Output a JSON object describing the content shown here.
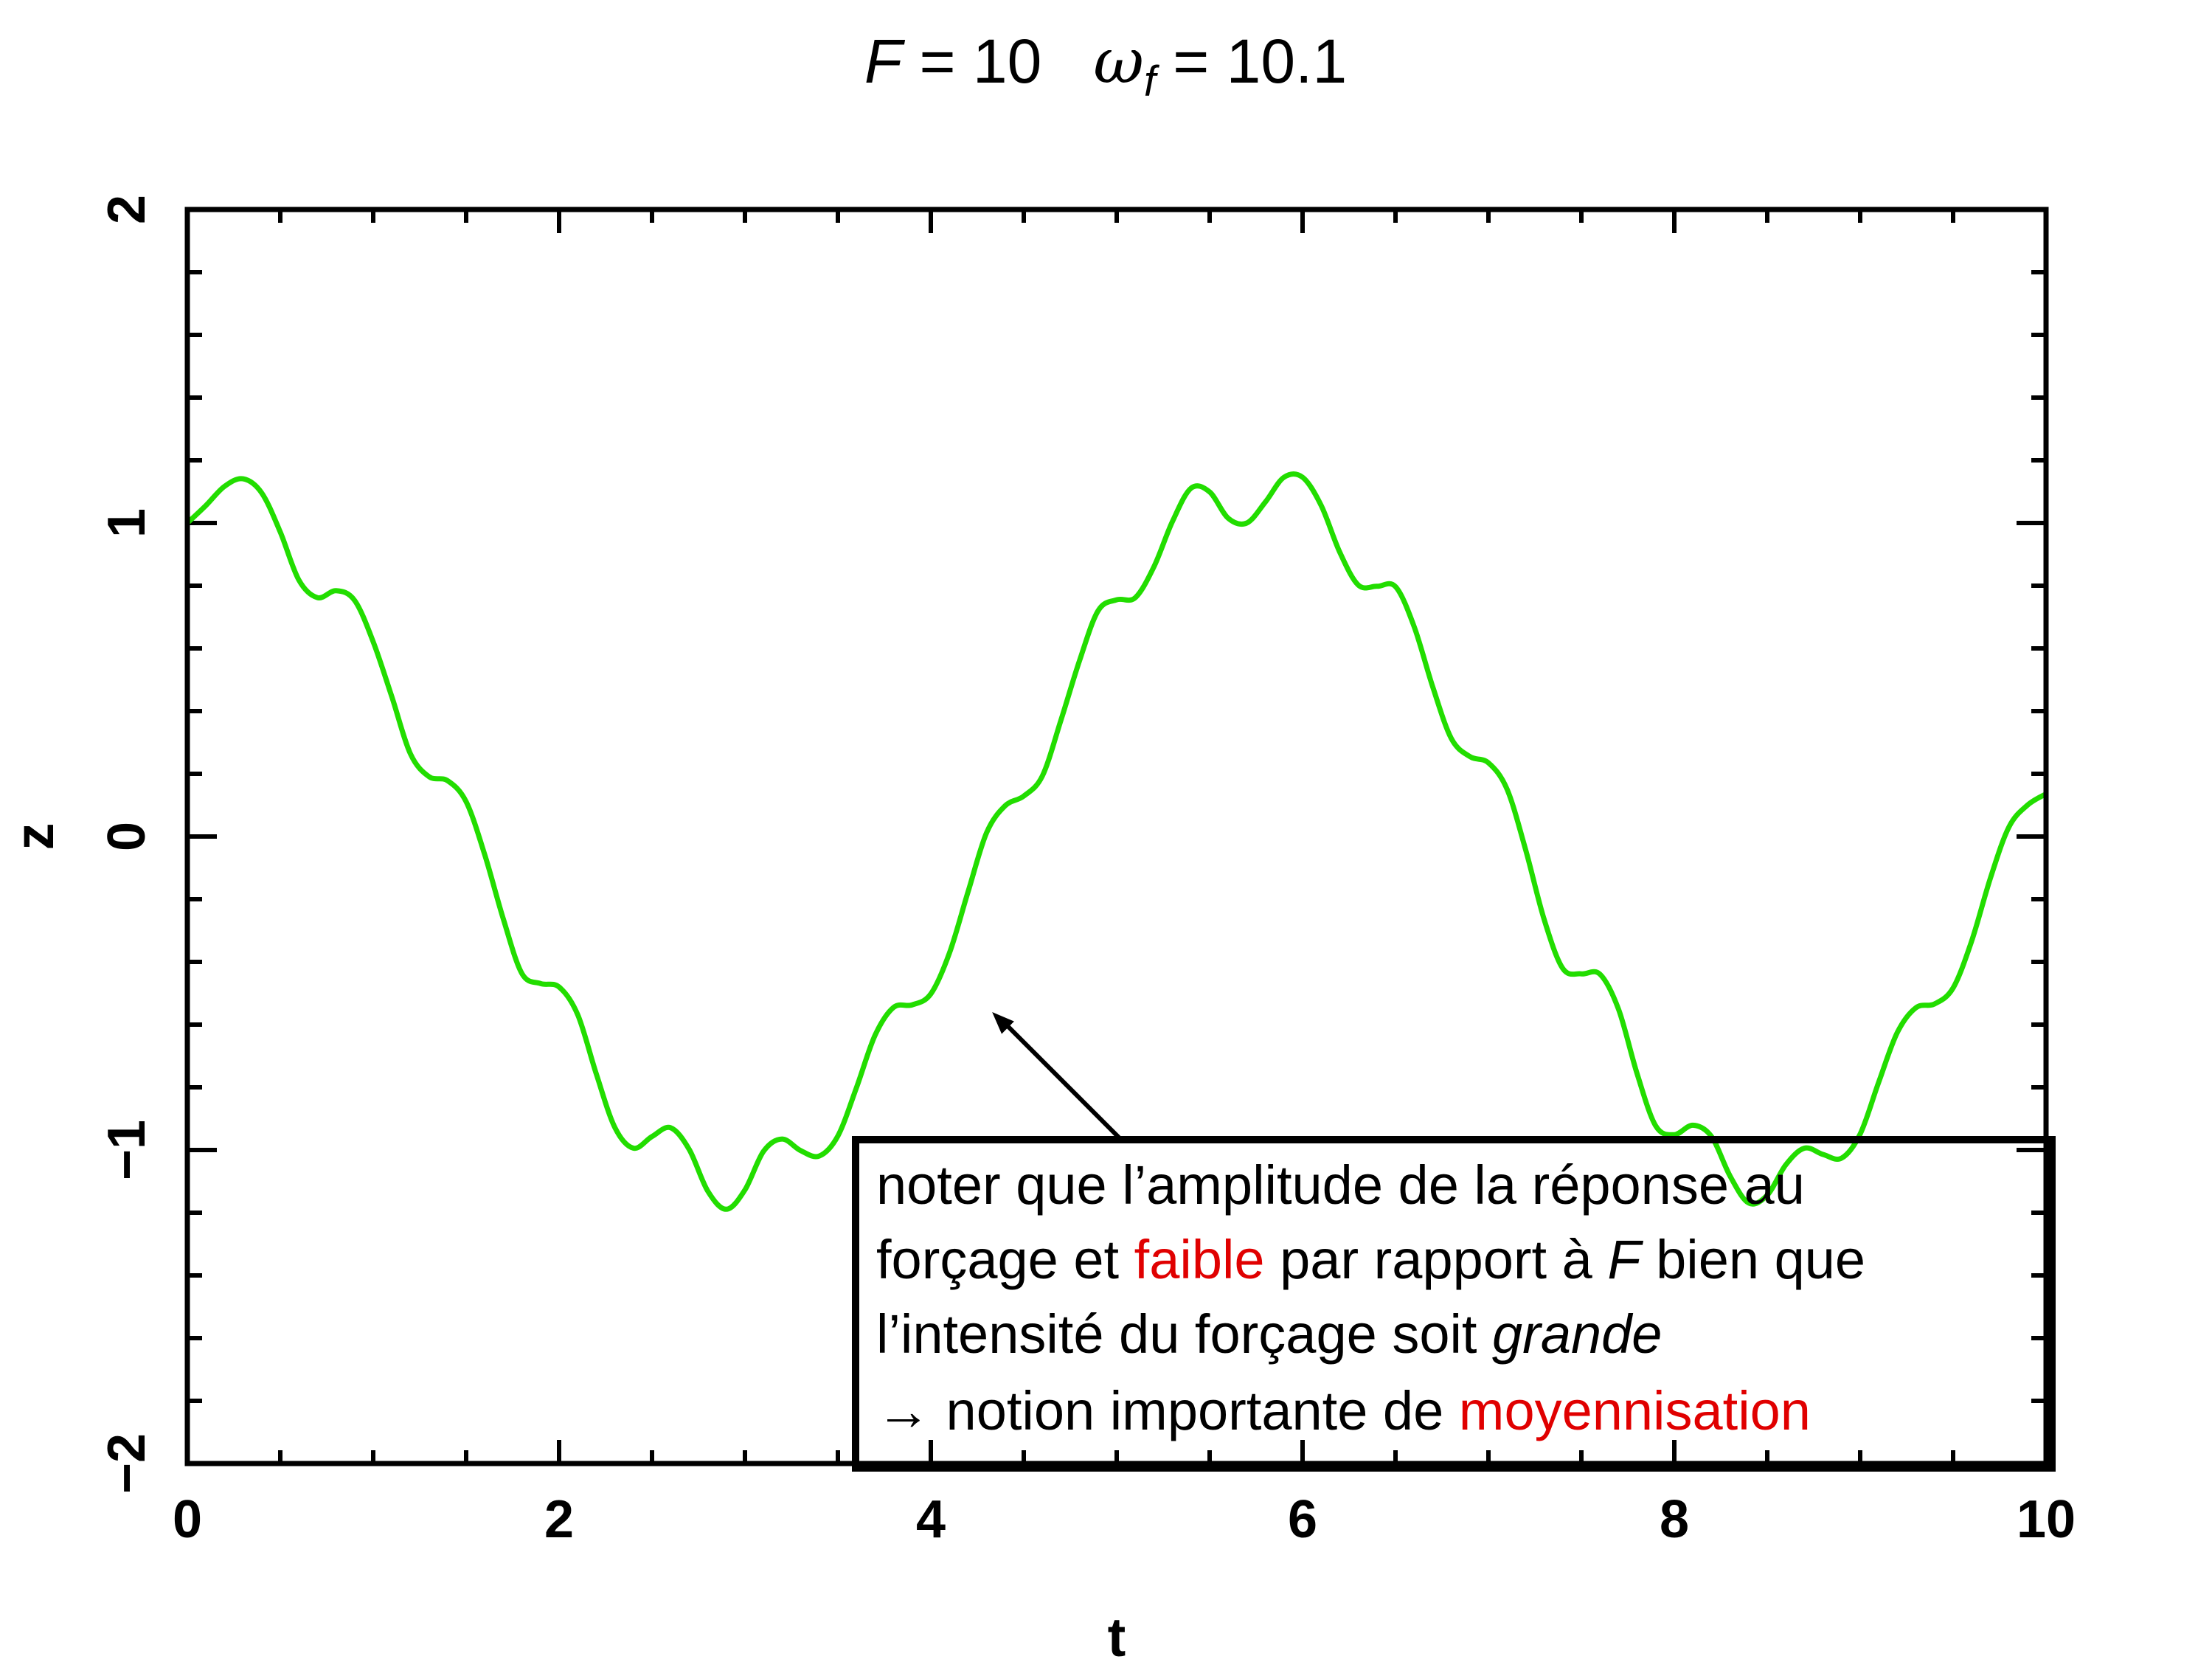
{
  "title": {
    "F_symbol": "F",
    "F_eq": " = 10",
    "omega_symbol": "ω",
    "omega_sub": "f",
    "omega_eq": " = 10.1"
  },
  "chart_data": {
    "type": "line",
    "xlabel": "t",
    "ylabel": "z",
    "xlim": [
      0,
      10
    ],
    "ylim": [
      -2,
      2
    ],
    "xticks": [
      0,
      2,
      4,
      6,
      8,
      10
    ],
    "xtick_labels": [
      "0",
      "2",
      "4",
      "6",
      "8",
      "10"
    ],
    "yticks": [
      -2,
      -1,
      0,
      1,
      2
    ],
    "ytick_labels": [
      "−2",
      "−1",
      "0",
      "1",
      "2"
    ],
    "grid": false,
    "series": [
      {
        "color": "#22dd00",
        "x": [
          0,
          0.1,
          0.2,
          0.3,
          0.4,
          0.5,
          0.6,
          0.7,
          0.8,
          0.9,
          1.0,
          1.1,
          1.2,
          1.3,
          1.4,
          1.5,
          1.6,
          1.7,
          1.8,
          1.9,
          2.0,
          2.1,
          2.2,
          2.3,
          2.4,
          2.5,
          2.6,
          2.7,
          2.8,
          2.9,
          3.0,
          3.1,
          3.2,
          3.3,
          3.4,
          3.5,
          3.6,
          3.7,
          3.8,
          3.9,
          4.0,
          4.1,
          4.2,
          4.3,
          4.4,
          4.5,
          4.6,
          4.7,
          4.8,
          4.9,
          5.0,
          5.1,
          5.2,
          5.3,
          5.4,
          5.5,
          5.6,
          5.7,
          5.8,
          5.9,
          6.0,
          6.1,
          6.2,
          6.3,
          6.4,
          6.5,
          6.6,
          6.7,
          6.8,
          6.9,
          7.0,
          7.1,
          7.2,
          7.3,
          7.4,
          7.5,
          7.6,
          7.7,
          7.8,
          7.9,
          8.0,
          8.1,
          8.2,
          8.3,
          8.4,
          8.5,
          8.6,
          8.7,
          8.8,
          8.9,
          9.0,
          9.1,
          9.2,
          9.3,
          9.4,
          9.5,
          9.6,
          9.7,
          9.8,
          9.9,
          10.0
        ],
        "y": [
          1.0,
          1.056,
          1.117,
          1.141,
          1.096,
          0.971,
          0.818,
          0.762,
          0.784,
          0.753,
          0.621,
          0.446,
          0.264,
          0.191,
          0.178,
          0.111,
          -0.058,
          -0.263,
          -0.437,
          -0.469,
          -0.48,
          -0.568,
          -0.757,
          -0.928,
          -0.994,
          -0.957,
          -0.929,
          -0.998,
          -1.131,
          -1.189,
          -1.127,
          -1.004,
          -0.965,
          -1.002,
          -1.019,
          -0.955,
          -0.801,
          -0.634,
          -0.545,
          -0.537,
          -0.502,
          -0.372,
          -0.177,
          0.012,
          0.098,
          0.129,
          0.193,
          0.371,
          0.561,
          0.72,
          0.755,
          0.762,
          0.86,
          1.005,
          1.111,
          1.099,
          1.015,
          1.0,
          1.067,
          1.146,
          1.146,
          1.056,
          0.907,
          0.802,
          0.798,
          0.797,
          0.67,
          0.478,
          0.313,
          0.255,
          0.235,
          0.151,
          -0.042,
          -0.265,
          -0.421,
          -0.438,
          -0.439,
          -0.551,
          -0.757,
          -0.923,
          -0.951,
          -0.921,
          -0.957,
          -1.083,
          -1.169,
          -1.144,
          -1.047,
          -0.994,
          -1.014,
          -1.026,
          -0.949,
          -0.783,
          -0.625,
          -0.546,
          -0.534,
          -0.483,
          -0.333,
          -0.134,
          0.03,
          0.1,
          0.136
        ]
      }
    ],
    "annotation": {
      "lines": [
        [
          {
            "text": "noter que l’amplitude de la réponse au",
            "color": "#000000",
            "italic": false
          }
        ],
        [
          {
            "text": "forçage et ",
            "color": "#000000",
            "italic": false
          },
          {
            "text": "faible",
            "color": "#e00000",
            "italic": false
          },
          {
            "text": " par rapport à ",
            "color": "#000000",
            "italic": false
          },
          {
            "text": "F",
            "color": "#000000",
            "italic": true
          },
          {
            "text": " bien que",
            "color": "#000000",
            "italic": false
          }
        ],
        [
          {
            "text": "l’intensité du forçage soit ",
            "color": "#000000",
            "italic": false
          },
          {
            "text": "grande",
            "color": "#000000",
            "italic": true
          }
        ],
        [
          {
            "text": "→ notion importante de ",
            "color": "#000000",
            "italic": false
          },
          {
            "text": "moyennisation",
            "color": "#e00000",
            "italic": false
          }
        ]
      ],
      "arrow_target": {
        "x": 4.33,
        "y": -0.56
      }
    }
  }
}
